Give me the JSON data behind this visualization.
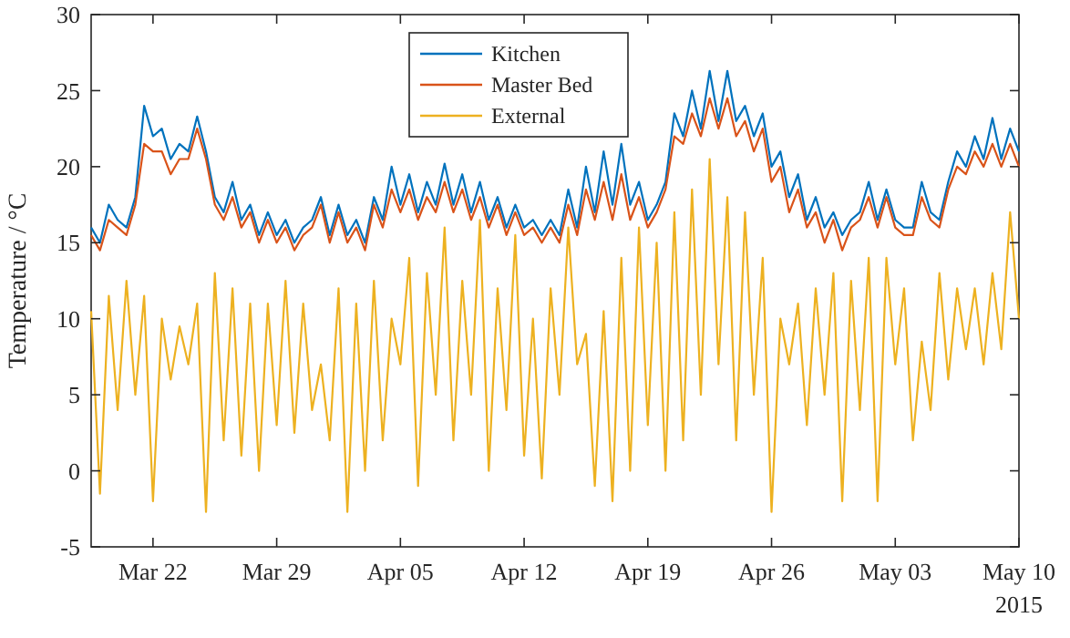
{
  "chart_data": {
    "type": "line",
    "ylabel": "Temperature / °C",
    "xlim": [
      "2015-03-18T12:00",
      "2015-05-10"
    ],
    "ylim": [
      -5,
      30
    ],
    "yticks": [
      -5,
      0,
      5,
      10,
      15,
      20,
      25,
      30
    ],
    "xticks": [
      {
        "value": "2015-03-22",
        "label": "Mar 22"
      },
      {
        "value": "2015-03-29",
        "label": "Mar 29"
      },
      {
        "value": "2015-04-05",
        "label": "Apr 05"
      },
      {
        "value": "2015-04-12",
        "label": "Apr 12"
      },
      {
        "value": "2015-04-19",
        "label": "Apr 19"
      },
      {
        "value": "2015-04-26",
        "label": "Apr 26"
      },
      {
        "value": "2015-05-03",
        "label": "May 03"
      },
      {
        "value": "2015-05-10",
        "label": "May 10"
      }
    ],
    "annotations": [
      "2015"
    ],
    "legend": "top",
    "grid": false,
    "marker": "none",
    "line_style": "solid",
    "x": [
      "2015-03-18T12:00",
      "2015-03-19T00:00",
      "2015-03-19T12:00",
      "2015-03-20T00:00",
      "2015-03-20T12:00",
      "2015-03-21T00:00",
      "2015-03-21T12:00",
      "2015-03-22T00:00",
      "2015-03-22T12:00",
      "2015-03-23T00:00",
      "2015-03-23T12:00",
      "2015-03-24T00:00",
      "2015-03-24T12:00",
      "2015-03-25T00:00",
      "2015-03-25T12:00",
      "2015-03-26T00:00",
      "2015-03-26T12:00",
      "2015-03-27T00:00",
      "2015-03-27T12:00",
      "2015-03-28T00:00",
      "2015-03-28T12:00",
      "2015-03-29T00:00",
      "2015-03-29T12:00",
      "2015-03-30T00:00",
      "2015-03-30T12:00",
      "2015-03-31T00:00",
      "2015-03-31T12:00",
      "2015-04-01T00:00",
      "2015-04-01T12:00",
      "2015-04-02T00:00",
      "2015-04-02T12:00",
      "2015-04-03T00:00",
      "2015-04-03T12:00",
      "2015-04-04T00:00",
      "2015-04-04T12:00",
      "2015-04-05T00:00",
      "2015-04-05T12:00",
      "2015-04-06T00:00",
      "2015-04-06T12:00",
      "2015-04-07T00:00",
      "2015-04-07T12:00",
      "2015-04-08T00:00",
      "2015-04-08T12:00",
      "2015-04-09T00:00",
      "2015-04-09T12:00",
      "2015-04-10T00:00",
      "2015-04-10T12:00",
      "2015-04-11T00:00",
      "2015-04-11T12:00",
      "2015-04-12T00:00",
      "2015-04-12T12:00",
      "2015-04-13T00:00",
      "2015-04-13T12:00",
      "2015-04-14T00:00",
      "2015-04-14T12:00",
      "2015-04-15T00:00",
      "2015-04-15T12:00",
      "2015-04-16T00:00",
      "2015-04-16T12:00",
      "2015-04-17T00:00",
      "2015-04-17T12:00",
      "2015-04-18T00:00",
      "2015-04-18T12:00",
      "2015-04-19T00:00",
      "2015-04-19T12:00",
      "2015-04-20T00:00",
      "2015-04-20T12:00",
      "2015-04-21T00:00",
      "2015-04-21T12:00",
      "2015-04-22T00:00",
      "2015-04-22T12:00",
      "2015-04-23T00:00",
      "2015-04-23T12:00",
      "2015-04-24T00:00",
      "2015-04-24T12:00",
      "2015-04-25T00:00",
      "2015-04-25T12:00",
      "2015-04-26T00:00",
      "2015-04-26T12:00",
      "2015-04-27T00:00",
      "2015-04-27T12:00",
      "2015-04-28T00:00",
      "2015-04-28T12:00",
      "2015-04-29T00:00",
      "2015-04-29T12:00",
      "2015-04-30T00:00",
      "2015-04-30T12:00",
      "2015-05-01T00:00",
      "2015-05-01T12:00",
      "2015-05-02T00:00",
      "2015-05-02T12:00",
      "2015-05-03T00:00",
      "2015-05-03T12:00",
      "2015-05-04T00:00",
      "2015-05-04T12:00",
      "2015-05-05T00:00",
      "2015-05-05T12:00",
      "2015-05-06T00:00",
      "2015-05-06T12:00",
      "2015-05-07T00:00",
      "2015-05-07T12:00",
      "2015-05-08T00:00",
      "2015-05-08T12:00",
      "2015-05-09T00:00",
      "2015-05-09T12:00",
      "2015-05-10T00:00"
    ],
    "series": [
      {
        "name": "Kitchen",
        "color": "#0072bd",
        "values": [
          16,
          15,
          17.5,
          16.5,
          16,
          18,
          24,
          22,
          22.5,
          20.5,
          21.5,
          21,
          23.3,
          21,
          18,
          17,
          19,
          16.5,
          17.5,
          15.5,
          17,
          15.5,
          16.5,
          15,
          16,
          16.5,
          18,
          15.5,
          17.5,
          15.5,
          16.5,
          15,
          18,
          16.5,
          20,
          17.5,
          19.5,
          17,
          19,
          17.5,
          20.2,
          17.5,
          19.5,
          17,
          19,
          16.5,
          18,
          16,
          17.5,
          16,
          16.5,
          15.5,
          16.5,
          15.5,
          18.5,
          16,
          20,
          17,
          21,
          17.5,
          21.5,
          17.5,
          19,
          16.5,
          17.5,
          19,
          23.5,
          22,
          25,
          22.5,
          26.3,
          23,
          26.3,
          23,
          24,
          22,
          23.5,
          20,
          21,
          18,
          19.5,
          16.5,
          18,
          16,
          17,
          15.5,
          16.5,
          17,
          19,
          16.5,
          18.5,
          16.5,
          16,
          16,
          19,
          17,
          16.5,
          19,
          21,
          20,
          22,
          20.5,
          23.2,
          20.5,
          22.5,
          21
        ]
      },
      {
        "name": "Master Bed",
        "color": "#d95319",
        "values": [
          15.5,
          14.5,
          16.5,
          16,
          15.5,
          17.5,
          21.5,
          21,
          21,
          19.5,
          20.5,
          20.5,
          22.5,
          20.5,
          17.5,
          16.5,
          18,
          16,
          17,
          15,
          16.5,
          15,
          16,
          14.5,
          15.5,
          16,
          17.5,
          15,
          17,
          15,
          16,
          14.5,
          17.5,
          16,
          18.5,
          17,
          18.5,
          16.5,
          18,
          17,
          19,
          17,
          18.5,
          16.5,
          18,
          16,
          17.5,
          15.5,
          17,
          15.5,
          16,
          15,
          16,
          15,
          17.5,
          15.5,
          18.5,
          16.5,
          19,
          16.5,
          19.5,
          16.5,
          18,
          16,
          17,
          18.5,
          22,
          21.5,
          23.5,
          22,
          24.5,
          22.5,
          24.5,
          22,
          23,
          21,
          22.5,
          19,
          20,
          17,
          18.5,
          16,
          17,
          15,
          16.5,
          14.5,
          16,
          16.5,
          18,
          16,
          18,
          16,
          15.5,
          15.5,
          18,
          16.5,
          16,
          18.5,
          20,
          19.5,
          21,
          20,
          21.5,
          20,
          21.5,
          20
        ]
      },
      {
        "name": "External",
        "color": "#edb120",
        "values": [
          10.5,
          -1.5,
          11.5,
          4,
          12.5,
          5,
          11.5,
          -2,
          10,
          6,
          9.5,
          7,
          11,
          -2.7,
          13,
          2,
          12,
          1,
          11,
          0,
          11,
          3,
          12.5,
          2.5,
          11,
          4,
          7,
          2,
          12,
          -2.7,
          11,
          0,
          12.5,
          2,
          10,
          7,
          14,
          -1,
          13,
          5,
          16,
          2,
          12.5,
          5,
          16.5,
          0,
          12,
          4,
          15.5,
          1,
          10,
          -0.5,
          12,
          5,
          16,
          7,
          9,
          -1,
          10.5,
          -2,
          14,
          0,
          16,
          3,
          15,
          0,
          17,
          2,
          18.5,
          5,
          20.5,
          7,
          18,
          2,
          17,
          5,
          14,
          -2.7,
          10,
          7,
          11,
          3,
          12,
          5,
          13,
          -2,
          12.5,
          4,
          14,
          -2,
          14,
          7,
          12,
          2,
          8.5,
          4,
          13,
          6,
          12,
          8,
          12,
          7,
          13,
          8,
          17,
          10
        ]
      }
    ]
  }
}
